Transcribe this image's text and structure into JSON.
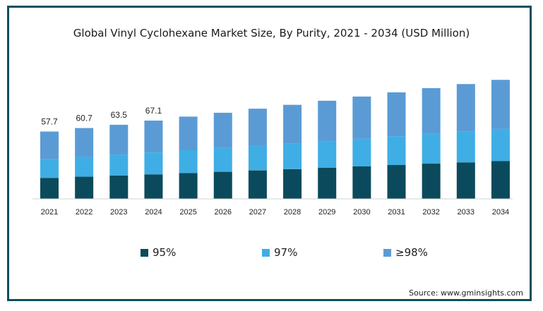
{
  "title": "Global Vinyl Cyclohexane Market Size, By Purity, 2021 - 2034 (USD Million)",
  "source": "Source: www.gminsights.com",
  "colors": {
    "s95": "#0b4a5c",
    "s97": "#3faee5",
    "s98": "#5b9bd5",
    "frame": "#0e4f5f"
  },
  "chart_data": {
    "type": "bar",
    "stacked": true,
    "title": "Global Vinyl Cyclohexane Market Size, By Purity, 2021 - 2034 (USD Million)",
    "categories": [
      "2021",
      "2022",
      "2023",
      "2024",
      "2025",
      "2026",
      "2027",
      "2028",
      "2029",
      "2030",
      "2031",
      "2032",
      "2033",
      "2034"
    ],
    "series": [
      {
        "name": "95%",
        "color": "#0b4a5c",
        "values": [
          18.0,
          19.0,
          20.0,
          21.0,
          22.1,
          23.2,
          24.4,
          25.5,
          26.6,
          27.8,
          29.0,
          30.2,
          31.3,
          32.5
        ]
      },
      {
        "name": "97%",
        "color": "#3faee5",
        "values": [
          16.0,
          17.0,
          18.0,
          18.8,
          19.6,
          20.4,
          21.2,
          22.0,
          22.9,
          23.8,
          24.7,
          25.6,
          26.5,
          27.4
        ]
      },
      {
        "name": "≥98%",
        "color": "#5b9bd5",
        "values": [
          23.7,
          24.7,
          25.5,
          27.3,
          28.8,
          30.2,
          31.7,
          33.1,
          34.6,
          36.1,
          37.6,
          39.1,
          40.6,
          42.1
        ]
      }
    ],
    "totals_labels": [
      "57.7",
      "60.7",
      "63.5",
      "67.1",
      "",
      "",
      "",
      "",
      "",
      "",
      "",
      "",
      "",
      ""
    ],
    "ylim": [
      0,
      110
    ],
    "xlabel": "",
    "ylabel": "",
    "legend_position": "bottom",
    "grid": false
  }
}
